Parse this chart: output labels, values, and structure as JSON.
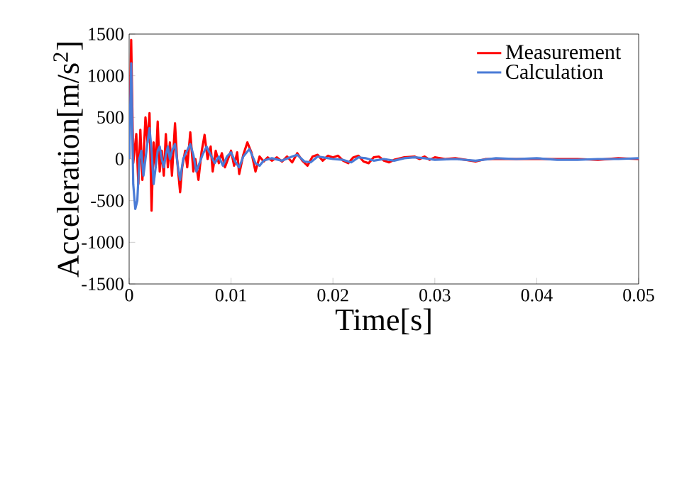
{
  "chart_data": {
    "type": "line",
    "xlabel": "Time[s]",
    "ylabel": "Acceleration[m/s$^{2}$]",
    "xlim": [
      0,
      0.05
    ],
    "ylim": [
      -1500,
      1500
    ],
    "xticks": [
      0,
      0.01,
      0.02,
      0.03,
      0.04,
      0.05
    ],
    "yticks": [
      -1500,
      -1000,
      -500,
      0,
      500,
      1000,
      1500
    ],
    "grid": false,
    "legend": "top right",
    "marker": "none",
    "line_style": "solid",
    "series": [
      {
        "name": "Measurement",
        "color": "#ff0000",
        "x": [
          0,
          0.0002,
          0.0004,
          0.0007,
          0.0009,
          0.0011,
          0.0013,
          0.0016,
          0.0018,
          0.002,
          0.0022,
          0.0024,
          0.0026,
          0.0028,
          0.003,
          0.0032,
          0.0034,
          0.0036,
          0.0038,
          0.004,
          0.0042,
          0.0045,
          0.0047,
          0.005,
          0.0052,
          0.0055,
          0.0057,
          0.006,
          0.0063,
          0.0065,
          0.0068,
          0.0071,
          0.0074,
          0.0077,
          0.008,
          0.0082,
          0.0085,
          0.0088,
          0.0091,
          0.0094,
          0.0097,
          0.01,
          0.0103,
          0.0106,
          0.0108,
          0.0112,
          0.0116,
          0.012,
          0.0124,
          0.0128,
          0.0132,
          0.0136,
          0.014,
          0.0145,
          0.015,
          0.0155,
          0.016,
          0.0165,
          0.017,
          0.0175,
          0.018,
          0.0185,
          0.019,
          0.0195,
          0.02,
          0.0205,
          0.021,
          0.0215,
          0.022,
          0.0225,
          0.023,
          0.0235,
          0.024,
          0.0245,
          0.025,
          0.0255,
          0.026,
          0.027,
          0.028,
          0.0285,
          0.029,
          0.0295,
          0.03,
          0.031,
          0.032,
          0.033,
          0.034,
          0.035,
          0.036,
          0.038,
          0.04,
          0.042,
          0.044,
          0.046,
          0.048,
          0.05
        ],
        "values": [
          0,
          1430,
          -50,
          300,
          -300,
          350,
          -250,
          500,
          200,
          550,
          -620,
          200,
          -100,
          450,
          -150,
          100,
          -200,
          300,
          -100,
          200,
          -200,
          430,
          0,
          -400,
          -100,
          100,
          -100,
          320,
          -150,
          0,
          -250,
          80,
          290,
          0,
          150,
          -150,
          100,
          -50,
          70,
          -100,
          0,
          100,
          -80,
          80,
          -180,
          50,
          200,
          80,
          -150,
          30,
          -30,
          20,
          -20,
          20,
          -30,
          30,
          -40,
          70,
          -20,
          -80,
          30,
          50,
          -20,
          40,
          20,
          40,
          -20,
          -50,
          20,
          40,
          -30,
          -50,
          20,
          30,
          -20,
          -40,
          -10,
          20,
          30,
          0,
          30,
          -10,
          20,
          0,
          10,
          -10,
          -30,
          0,
          null,
          0,
          null,
          null,
          0,
          -10,
          10,
          0
        ]
      },
      {
        "name": "Calculation",
        "color": "#4a7bd6",
        "x": [
          0,
          0.0002,
          0.0004,
          0.0006,
          0.0008,
          0.001,
          0.0012,
          0.0014,
          0.0016,
          0.0018,
          0.002,
          0.0022,
          0.0024,
          0.0026,
          0.0028,
          0.003,
          0.0032,
          0.0034,
          0.0036,
          0.0038,
          0.004,
          0.0042,
          0.0045,
          0.0048,
          0.005,
          0.0053,
          0.0056,
          0.006,
          0.0063,
          0.0066,
          0.0069,
          0.0072,
          0.0076,
          0.008,
          0.0084,
          0.0088,
          0.0092,
          0.0096,
          0.01,
          0.0104,
          0.0108,
          0.0112,
          0.0118,
          0.0124,
          0.0128,
          0.0132,
          0.014,
          0.015,
          0.016,
          0.0165,
          0.0172,
          0.0178,
          0.0185,
          0.019,
          0.02,
          0.021,
          0.0218,
          0.0225,
          0.0232,
          0.024,
          0.025,
          0.026,
          0.027,
          0.028,
          0.029,
          0.03,
          0.032,
          0.034,
          0.036,
          0.038,
          0.04,
          0.042,
          0.044,
          0.046,
          0.048,
          0.05
        ],
        "values": [
          0,
          1150,
          -300,
          -600,
          -500,
          0,
          100,
          -200,
          0,
          200,
          370,
          100,
          -300,
          -100,
          100,
          150,
          0,
          -100,
          50,
          150,
          0,
          100,
          180,
          -100,
          -250,
          0,
          80,
          180,
          50,
          -150,
          -50,
          50,
          150,
          50,
          -50,
          30,
          -80,
          30,
          80,
          -30,
          -100,
          30,
          120,
          -50,
          -80,
          -20,
          10,
          -20,
          30,
          50,
          -30,
          -40,
          30,
          20,
          0,
          -10,
          -40,
          20,
          10,
          -20,
          0,
          -20,
          10,
          20,
          10,
          -10,
          0,
          -20,
          10,
          0,
          10,
          -10,
          -10,
          0,
          0,
          10
        ]
      }
    ]
  }
}
